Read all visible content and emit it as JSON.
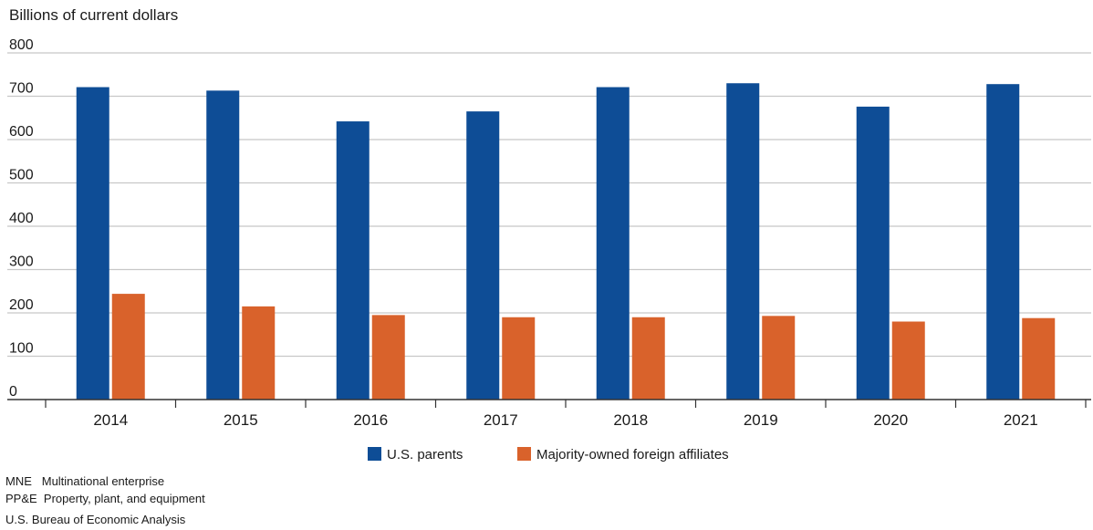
{
  "chart_data": {
    "type": "bar",
    "ylabel": "Billions of current dollars",
    "ylim": [
      0,
      800
    ],
    "yticks": [
      0,
      100,
      200,
      300,
      400,
      500,
      600,
      700,
      800
    ],
    "grid": true,
    "legend_position": "bottom",
    "categories": [
      "2014",
      "2015",
      "2016",
      "2017",
      "2018",
      "2019",
      "2020",
      "2021"
    ],
    "series": [
      {
        "name": "U.S. parents",
        "color": "#0e4d96",
        "values": [
          721,
          713,
          642,
          665,
          721,
          730,
          676,
          728
        ]
      },
      {
        "name": "Majority-owned foreign affiliates",
        "color": "#d9622b",
        "values": [
          244,
          215,
          195,
          190,
          190,
          193,
          180,
          188
        ]
      }
    ]
  },
  "notes": [
    {
      "abbr": "MNE",
      "text": "Multinational enterprise"
    },
    {
      "abbr": "PP&E",
      "text": "Property, plant, and equipment"
    }
  ],
  "source": "U.S. Bureau of Economic Analysis"
}
